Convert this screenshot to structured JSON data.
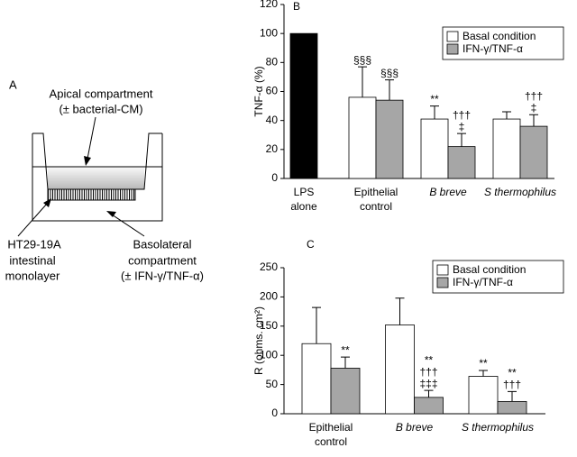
{
  "diagram": {
    "label": "A",
    "apical": [
      "Apical compartment",
      "(± bacterial-CM)"
    ],
    "monolayer": [
      "HT29-19A",
      "intestinal",
      "monolayer"
    ],
    "basolateral": [
      "Basolateral",
      "compartment",
      "(± IFN-γ/TNF-α)"
    ]
  },
  "chart_data": [
    {
      "type": "bar",
      "label": "B",
      "ylabel": "TNF-α (%)",
      "categories": [
        [
          "LPS",
          "alone"
        ],
        [
          "Epithelial",
          "control"
        ],
        [
          "B breve"
        ],
        [
          "S thermophilus"
        ]
      ],
      "category_italic": [
        false,
        false,
        true,
        true
      ],
      "ylim": [
        0,
        120
      ],
      "yticks": [
        0,
        20,
        40,
        60,
        80,
        100,
        120
      ],
      "legend": "upper right",
      "series": [
        {
          "color": "#000000",
          "values": [
            100,
            null,
            null,
            null
          ]
        },
        {
          "name": "Basal condition",
          "color": "#ffffff",
          "values": [
            null,
            56,
            41,
            41
          ],
          "errors": [
            null,
            21,
            9,
            5
          ],
          "annotations": [
            null,
            [
              "§§§"
            ],
            [
              "**"
            ],
            null
          ]
        },
        {
          "name": "IFN-γ/TNF-α",
          "color": "#a6a6a6",
          "values": [
            null,
            54,
            22,
            36
          ],
          "errors": [
            null,
            14,
            9,
            8
          ],
          "annotations": [
            null,
            [
              "§§§"
            ],
            [
              "†††",
              "‡"
            ],
            [
              "†††",
              "‡"
            ]
          ]
        }
      ]
    },
    {
      "type": "bar",
      "label": "C",
      "ylabel": "R (ohms. cm²)",
      "categories": [
        [
          "Epithelial",
          "control"
        ],
        [
          "B breve"
        ],
        [
          "S thermophilus"
        ]
      ],
      "category_italic": [
        false,
        true,
        true
      ],
      "ylim": [
        0,
        250
      ],
      "yticks": [
        0,
        50,
        100,
        150,
        200,
        250
      ],
      "legend": "upper right",
      "series": [
        {
          "name": "Basal condition",
          "color": "#ffffff",
          "values": [
            120,
            152,
            64
          ],
          "errors": [
            62,
            46,
            10
          ],
          "annotations": [
            null,
            null,
            [
              "**"
            ]
          ]
        },
        {
          "name": "IFN-γ/TNF-α",
          "color": "#a6a6a6",
          "values": [
            78,
            28,
            21
          ],
          "errors": [
            19,
            12,
            17
          ],
          "annotations": [
            [
              "**"
            ],
            [
              "**",
              "†††",
              "‡‡‡"
            ],
            [
              "**",
              "†††"
            ]
          ]
        }
      ]
    }
  ]
}
